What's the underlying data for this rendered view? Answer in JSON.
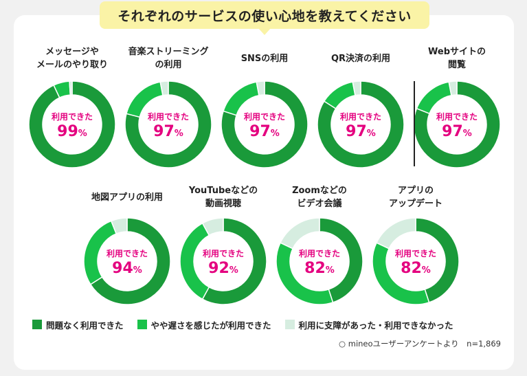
{
  "title": "それぞれのサービスの使い心地を教えてください",
  "center_label": "利用できた",
  "percent_sign": "%",
  "colors": {
    "no_problem": "#1a9a3a",
    "slow": "#19c24a",
    "blocked": "#d6ede0",
    "accent": "#e4007f",
    "title_bg": "#faf3a6"
  },
  "legend": [
    {
      "label": "問題なく利用できた",
      "color": "#1a9a3a"
    },
    {
      "label": "やや遅さを感じたが利用できた",
      "color": "#19c24a"
    },
    {
      "label": "利用に支障があった・利用できなかった",
      "color": "#d6ede0"
    }
  ],
  "source": "○ mineoユーザーアンケートより　n=1,869",
  "chart_data": {
    "type": "pie",
    "variant": "donut",
    "series_names": [
      "問題なく利用できた",
      "やや遅さを感じたが利用できた",
      "利用に支障があった・利用できなかった"
    ],
    "charts": [
      {
        "label": "メッセージや\nメールのやり取り",
        "usable_percent": 99,
        "values": [
          93,
          6,
          1
        ]
      },
      {
        "label": "音楽ストリーミング\nの利用",
        "usable_percent": 97,
        "values": [
          79,
          18,
          3
        ]
      },
      {
        "label": "SNSの利用",
        "usable_percent": 97,
        "values": [
          80,
          17,
          3
        ]
      },
      {
        "label": "QR決済の利用",
        "usable_percent": 97,
        "values": [
          84,
          13,
          3
        ]
      },
      {
        "label": "Webサイトの\n閲覧",
        "usable_percent": 97,
        "values": [
          81,
          16,
          3
        ]
      },
      {
        "label": "地図アプリの利用",
        "usable_percent": 94,
        "values": [
          66,
          28,
          6
        ]
      },
      {
        "label": "YouTubeなどの\n動画視聴",
        "usable_percent": 92,
        "values": [
          58,
          34,
          8
        ]
      },
      {
        "label": "Zoomなどの\nビデオ会議",
        "usable_percent": 82,
        "values": [
          45,
          37,
          18
        ]
      },
      {
        "label": "アプリの\nアップデート",
        "usable_percent": 82,
        "values": [
          45,
          37,
          18
        ]
      }
    ]
  }
}
